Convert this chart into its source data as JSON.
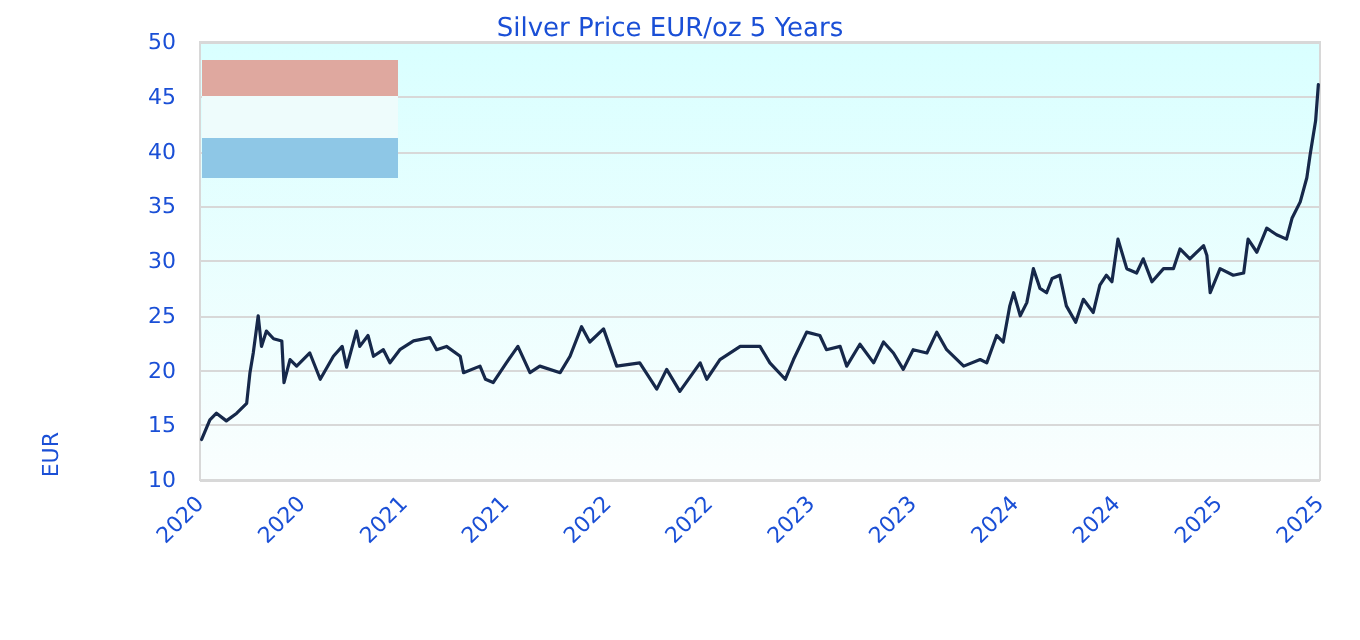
{
  "chart_data": {
    "type": "line",
    "title": "Silver Price EUR/oz 5 Years",
    "ylabel": "EUR",
    "xlim": [
      "2020-03-16",
      "2025-10-16"
    ],
    "xticks": [
      {
        "value": "2020-03-16",
        "label": "2020"
      },
      {
        "value": "2020-09-17",
        "label": "2020"
      },
      {
        "value": "2021-03-22",
        "label": "2021"
      },
      {
        "value": "2021-09-23",
        "label": "2021"
      },
      {
        "value": "2022-03-28",
        "label": "2022"
      },
      {
        "value": "2022-09-29",
        "label": "2022"
      },
      {
        "value": "2023-04-03",
        "label": "2023"
      },
      {
        "value": "2023-10-05",
        "label": "2023"
      },
      {
        "value": "2024-04-08",
        "label": "2024"
      },
      {
        "value": "2024-10-10",
        "label": "2024"
      },
      {
        "value": "2025-04-14",
        "label": "2025"
      },
      {
        "value": "2025-10-16",
        "label": "2025"
      }
    ],
    "ylim": [
      10,
      50
    ],
    "yticks": [
      10,
      15,
      20,
      25,
      30,
      35,
      40,
      45,
      50
    ],
    "grid": "y",
    "marker": "none",
    "line_style": "solid",
    "x": [
      "2020-03-19",
      "2020-04-03",
      "2020-04-15",
      "2020-05-03",
      "2020-05-22",
      "2020-06-09",
      "2020-06-15",
      "2020-06-21",
      "2020-06-30",
      "2020-07-06",
      "2020-07-15",
      "2020-07-28",
      "2020-08-12",
      "2020-08-16",
      "2020-08-27",
      "2020-09-08",
      "2020-10-02",
      "2020-10-21",
      "2020-11-14",
      "2020-11-30",
      "2020-12-08",
      "2020-12-26",
      "2021-01-01",
      "2021-01-16",
      "2021-01-26",
      "2021-02-13",
      "2021-02-25",
      "2021-03-15",
      "2021-04-09",
      "2021-05-09",
      "2021-05-21",
      "2021-06-08",
      "2021-07-03",
      "2021-07-09",
      "2021-08-08",
      "2021-08-18",
      "2021-09-01",
      "2021-09-25",
      "2021-10-16",
      "2021-11-07",
      "2021-11-25",
      "2022-01-01",
      "2022-01-19",
      "2022-02-09",
      "2022-02-24",
      "2022-03-21",
      "2022-04-14",
      "2022-05-26",
      "2022-06-26",
      "2022-07-14",
      "2022-08-07",
      "2022-09-13",
      "2022-09-25",
      "2022-10-19",
      "2022-11-25",
      "2022-12-31",
      "2023-01-18",
      "2023-02-15",
      "2023-03-02",
      "2023-03-26",
      "2023-04-19",
      "2023-05-01",
      "2023-05-26",
      "2023-06-07",
      "2023-07-01",
      "2023-07-26",
      "2023-08-13",
      "2023-08-31",
      "2023-09-18",
      "2023-10-06",
      "2023-10-31",
      "2023-11-18",
      "2023-12-06",
      "2024-01-06",
      "2024-02-05",
      "2024-02-17",
      "2024-03-06",
      "2024-03-18",
      "2024-03-30",
      "2024-04-06",
      "2024-04-18",
      "2024-04-30",
      "2024-05-12",
      "2024-05-24",
      "2024-06-05",
      "2024-06-15",
      "2024-06-29",
      "2024-07-11",
      "2024-07-28",
      "2024-08-11",
      "2024-08-29",
      "2024-09-10",
      "2024-09-22",
      "2024-10-02",
      "2024-10-13",
      "2024-10-29",
      "2024-11-16",
      "2024-11-28",
      "2024-12-14",
      "2025-01-04",
      "2025-01-22",
      "2025-02-03",
      "2025-02-21",
      "2025-03-18",
      "2025-03-24",
      "2025-03-30",
      "2025-04-17",
      "2025-05-11",
      "2025-05-30",
      "2025-06-07",
      "2025-06-23",
      "2025-07-11",
      "2025-07-29",
      "2025-08-16",
      "2025-08-26",
      "2025-09-10",
      "2025-09-22",
      "2025-09-28",
      "2025-10-08",
      "2025-10-13"
    ],
    "series": [
      {
        "color": "#16284a",
        "values": [
          13.7,
          15.5,
          16.1,
          15.4,
          16.1,
          17.0,
          19.8,
          21.6,
          25.0,
          22.2,
          23.6,
          22.9,
          22.7,
          18.9,
          21.0,
          20.4,
          21.6,
          19.2,
          21.3,
          22.2,
          20.3,
          23.6,
          22.2,
          23.2,
          21.3,
          21.9,
          20.7,
          21.9,
          22.7,
          23.0,
          21.9,
          22.2,
          21.3,
          19.8,
          20.4,
          19.2,
          18.9,
          20.7,
          22.2,
          19.8,
          20.4,
          19.8,
          21.3,
          24.0,
          22.6,
          23.8,
          20.4,
          20.7,
          18.3,
          20.1,
          18.1,
          20.7,
          19.2,
          21.0,
          22.2,
          22.2,
          20.7,
          19.2,
          21.0,
          23.5,
          23.2,
          21.9,
          22.2,
          20.4,
          22.4,
          20.7,
          22.6,
          21.6,
          20.1,
          21.9,
          21.6,
          23.5,
          21.9,
          20.4,
          21.0,
          20.7,
          23.2,
          22.6,
          25.9,
          27.1,
          25.0,
          26.2,
          29.3,
          27.5,
          27.1,
          28.4,
          28.7,
          25.9,
          24.4,
          26.5,
          25.3,
          27.8,
          28.7,
          28.1,
          32.0,
          29.3,
          28.9,
          30.2,
          28.1,
          29.3,
          29.3,
          31.1,
          30.2,
          31.4,
          30.5,
          27.1,
          29.3,
          28.7,
          28.9,
          32.0,
          30.8,
          33.0,
          32.4,
          32.0,
          33.9,
          35.4,
          37.6,
          39.7,
          42.8,
          46.1
        ]
      }
    ]
  }
}
